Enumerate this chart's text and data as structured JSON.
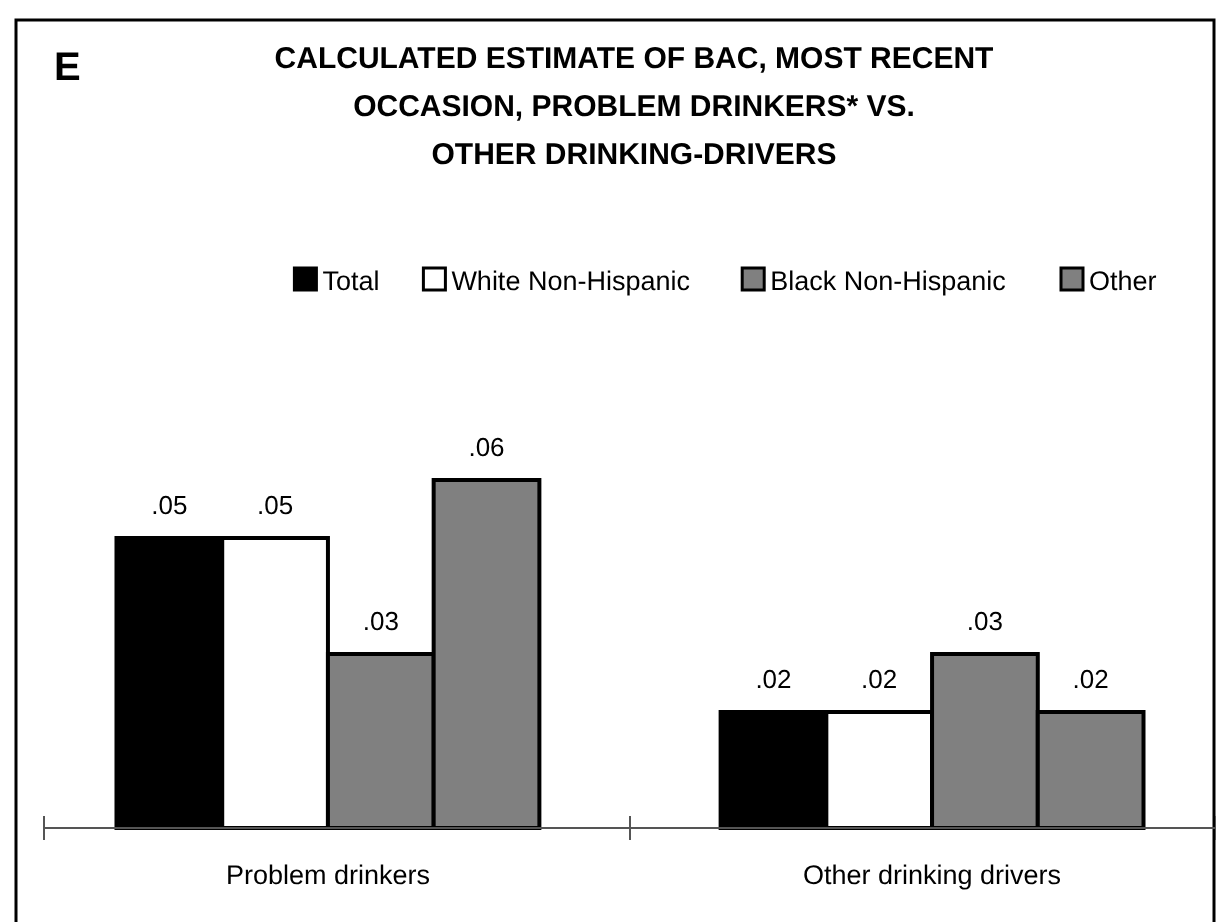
{
  "chart_data": {
    "type": "bar",
    "title": "CALCULATED ESTIMATE OF BAC, MOST RECENT OCCASION, PROBLEM DRINKERS* VS. OTHER DRINKING-DRIVERS",
    "annotations": [
      "E"
    ],
    "categories": [
      "Problem drinkers",
      "Other drinking drivers"
    ],
    "series": [
      {
        "name": "Total",
        "color": "#000000",
        "values": [
          0.05,
          0.02
        ],
        "value_labels": [
          ".05",
          ".02"
        ]
      },
      {
        "name": "White Non-Hispanic",
        "color": "#ffffff",
        "values": [
          0.05,
          0.02
        ],
        "value_labels": [
          ".05",
          ".02"
        ]
      },
      {
        "name": "Black Non-Hispanic",
        "color": "#808080",
        "values": [
          0.03,
          0.03
        ],
        "value_labels": [
          ".03",
          ".03"
        ]
      },
      {
        "name": "Other",
        "color": "#808080",
        "values": [
          0.06,
          0.02
        ],
        "value_labels": [
          ".06",
          ".02"
        ]
      }
    ],
    "legend": "top"
  }
}
